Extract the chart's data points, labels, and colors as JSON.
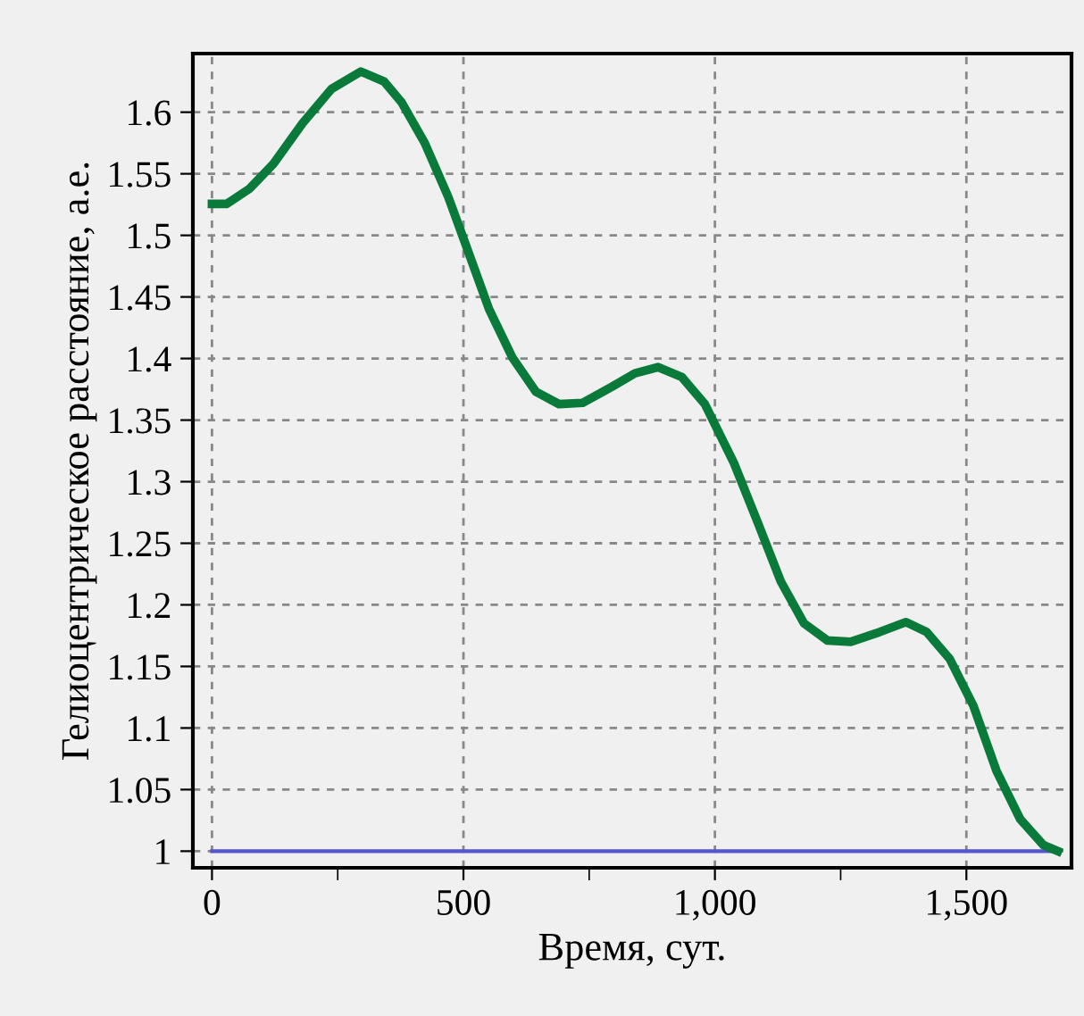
{
  "chart_data": {
    "type": "line",
    "xlabel": "Время, сут.",
    "ylabel": "Гелиоцентрическое расстояние, а.е.",
    "xlim": [
      -38,
      1709
    ],
    "ylim": [
      0.9865,
      1.6476
    ],
    "xticks": [
      0,
      {
        "value": 250,
        "label": null
      },
      {
        "value": 500,
        "label": "500"
      },
      {
        "value": 750,
        "label": null
      },
      {
        "value": 1000,
        "label": "1,000"
      },
      {
        "value": 1250,
        "label": null
      },
      {
        "value": 1500,
        "label": "1,500"
      }
    ],
    "yticks": [
      1,
      1.05,
      1.1,
      1.15,
      1.2,
      1.25,
      1.3,
      1.35,
      1.4,
      1.45,
      1.5,
      1.55,
      1.6
    ],
    "grid": true,
    "line_style": "solid",
    "marker": "none",
    "series": [
      {
        "color": "#0a7a3a",
        "x": [
          0,
          29,
          75,
          122,
          180,
          238,
          296,
          342,
          377,
          423,
          470,
          504,
          551,
          597,
          644,
          690,
          737,
          795,
          841,
          887,
          934,
          980,
          1038,
          1085,
          1131,
          1177,
          1224,
          1270,
          1328,
          1380,
          1421,
          1467,
          1514,
          1560,
          1607,
          1653,
          1682
        ],
        "values": [
          1.5255,
          1.5255,
          1.538,
          1.558,
          1.591,
          1.619,
          1.633,
          1.625,
          1.608,
          1.575,
          1.531,
          1.493,
          1.44,
          1.401,
          1.373,
          1.363,
          1.364,
          1.377,
          1.388,
          1.393,
          1.385,
          1.363,
          1.315,
          1.267,
          1.219,
          1.185,
          1.171,
          1.17,
          1.178,
          1.186,
          1.178,
          1.156,
          1.118,
          1.065,
          1.026,
          1.005,
          1.0
        ]
      },
      {
        "color": "#5555cc",
        "x": [
          0,
          1682
        ],
        "values": [
          1.0,
          1.0
        ]
      }
    ]
  }
}
